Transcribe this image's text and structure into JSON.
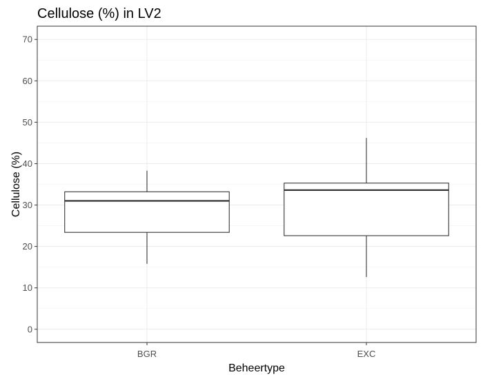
{
  "chart_data": {
    "type": "boxplot",
    "title": "Cellulose (%) in LV2",
    "xlabel": "Beheertype",
    "ylabel": "Cellulose (%)",
    "ylim": [
      -3.2,
      73.2
    ],
    "yticks": [
      0,
      10,
      20,
      30,
      40,
      50,
      60,
      70
    ],
    "categories": [
      "BGR",
      "EXC"
    ],
    "boxes": [
      {
        "category": "BGR",
        "min": 15.8,
        "q1": 23.4,
        "median": 31.0,
        "q3": 33.2,
        "max": 38.3
      },
      {
        "category": "EXC",
        "min": 12.6,
        "q1": 22.6,
        "median": 33.6,
        "q3": 35.3,
        "max": 46.2
      }
    ],
    "grid": true,
    "theme": "bw"
  }
}
